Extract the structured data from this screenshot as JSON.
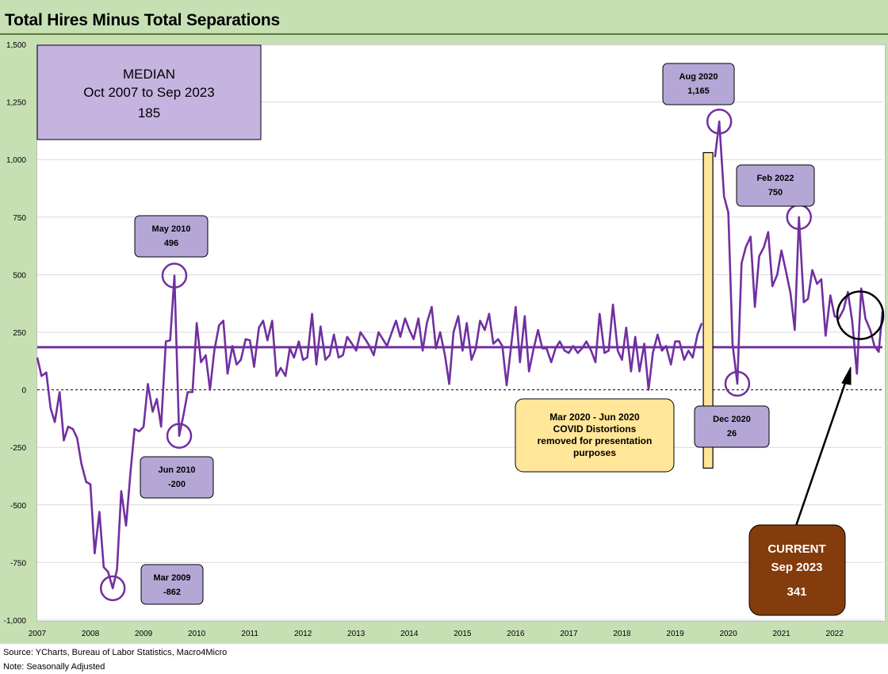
{
  "chart_data": {
    "type": "line",
    "title": "Total Hires Minus Total Separations",
    "ylim": [
      -1000,
      1500
    ],
    "yticks": [
      -1000,
      -750,
      -500,
      -250,
      0,
      250,
      500,
      750,
      1000,
      1250,
      1500
    ],
    "ytick_labels": [
      "-1,000",
      "-750",
      "-500",
      "-250",
      "0",
      "250",
      "500",
      "750",
      "1,000",
      "1,250",
      "1,500"
    ],
    "xlim": [
      2007.0,
      2022.9
    ],
    "xtick_labels": [
      "2007",
      "2008",
      "2009",
      "2010",
      "2011",
      "2012",
      "2013",
      "2014",
      "2015",
      "2016",
      "2017",
      "2018",
      "2019",
      "2020",
      "2021",
      "2022"
    ],
    "median": 185,
    "series": [
      {
        "name": "Total Hires Minus Total Separations",
        "color": "#7030a0",
        "segments": [
          [
            [
              2007.0,
              140
            ],
            [
              2007.08,
              60
            ],
            [
              2007.17,
              75
            ],
            [
              2007.25,
              -80
            ],
            [
              2007.33,
              -140
            ],
            [
              2007.42,
              -10
            ],
            [
              2007.5,
              -220
            ],
            [
              2007.58,
              -160
            ],
            [
              2007.67,
              -170
            ],
            [
              2007.75,
              -210
            ],
            [
              2007.83,
              -320
            ],
            [
              2007.92,
              -400
            ],
            [
              2008.0,
              -410
            ],
            [
              2008.08,
              -710
            ],
            [
              2008.17,
              -530
            ],
            [
              2008.25,
              -770
            ],
            [
              2008.33,
              -790
            ],
            [
              2008.42,
              -862
            ],
            [
              2008.5,
              -780
            ],
            [
              2008.58,
              -440
            ],
            [
              2008.67,
              -590
            ],
            [
              2008.75,
              -370
            ],
            [
              2008.83,
              -170
            ],
            [
              2008.92,
              -180
            ],
            [
              2009.0,
              -160
            ],
            [
              2009.08,
              25
            ],
            [
              2009.17,
              -95
            ],
            [
              2009.25,
              -40
            ],
            [
              2009.33,
              -160
            ],
            [
              2009.42,
              210
            ],
            [
              2009.5,
              215
            ],
            [
              2009.58,
              496
            ],
            [
              2009.67,
              -200
            ],
            [
              2009.75,
              -110
            ],
            [
              2009.83,
              -10
            ],
            [
              2009.92,
              -10
            ],
            [
              2010.0,
              290
            ],
            [
              2010.08,
              120
            ],
            [
              2010.17,
              150
            ],
            [
              2010.25,
              0
            ],
            [
              2010.33,
              170
            ],
            [
              2010.42,
              280
            ],
            [
              2010.5,
              300
            ],
            [
              2010.58,
              70
            ],
            [
              2010.67,
              190
            ],
            [
              2010.75,
              110
            ],
            [
              2010.83,
              130
            ],
            [
              2010.92,
              220
            ],
            [
              2011.0,
              215
            ],
            [
              2011.08,
              100
            ],
            [
              2011.17,
              270
            ],
            [
              2011.25,
              300
            ],
            [
              2011.33,
              215
            ],
            [
              2011.42,
              300
            ],
            [
              2011.5,
              60
            ],
            [
              2011.58,
              95
            ],
            [
              2011.67,
              60
            ],
            [
              2011.75,
              180
            ],
            [
              2011.83,
              140
            ],
            [
              2011.92,
              210
            ],
            [
              2012.0,
              130
            ],
            [
              2012.08,
              140
            ],
            [
              2012.17,
              330
            ],
            [
              2012.25,
              110
            ],
            [
              2012.33,
              275
            ],
            [
              2012.42,
              130
            ],
            [
              2012.5,
              150
            ],
            [
              2012.58,
              240
            ],
            [
              2012.67,
              140
            ],
            [
              2012.75,
              150
            ],
            [
              2012.83,
              230
            ],
            [
              2012.92,
              200
            ],
            [
              2013.0,
              170
            ],
            [
              2013.08,
              250
            ],
            [
              2013.17,
              220
            ],
            [
              2013.25,
              190
            ],
            [
              2013.33,
              150
            ],
            [
              2013.42,
              250
            ],
            [
              2013.5,
              220
            ],
            [
              2013.58,
              190
            ],
            [
              2013.67,
              250
            ],
            [
              2013.75,
              300
            ],
            [
              2013.83,
              230
            ],
            [
              2013.92,
              310
            ],
            [
              2014.0,
              260
            ],
            [
              2014.08,
              220
            ],
            [
              2014.17,
              310
            ],
            [
              2014.25,
              170
            ],
            [
              2014.33,
              290
            ],
            [
              2014.42,
              360
            ],
            [
              2014.5,
              180
            ],
            [
              2014.58,
              250
            ],
            [
              2014.67,
              150
            ],
            [
              2014.75,
              25
            ],
            [
              2014.83,
              250
            ],
            [
              2014.92,
              320
            ],
            [
              2015.0,
              170
            ],
            [
              2015.08,
              290
            ],
            [
              2015.17,
              130
            ],
            [
              2015.25,
              180
            ],
            [
              2015.33,
              300
            ],
            [
              2015.42,
              260
            ],
            [
              2015.5,
              330
            ],
            [
              2015.58,
              200
            ],
            [
              2015.67,
              220
            ],
            [
              2015.75,
              190
            ],
            [
              2015.83,
              20
            ],
            [
              2015.92,
              200
            ],
            [
              2016.0,
              360
            ],
            [
              2016.08,
              120
            ],
            [
              2016.17,
              320
            ],
            [
              2016.25,
              80
            ],
            [
              2016.33,
              170
            ],
            [
              2016.42,
              260
            ],
            [
              2016.5,
              180
            ],
            [
              2016.58,
              180
            ],
            [
              2016.67,
              120
            ],
            [
              2016.75,
              180
            ],
            [
              2016.83,
              210
            ],
            [
              2016.92,
              170
            ],
            [
              2017.0,
              160
            ],
            [
              2017.08,
              190
            ],
            [
              2017.17,
              160
            ],
            [
              2017.25,
              180
            ],
            [
              2017.33,
              210
            ],
            [
              2017.42,
              170
            ],
            [
              2017.5,
              120
            ],
            [
              2017.58,
              330
            ],
            [
              2017.67,
              160
            ],
            [
              2017.75,
              170
            ],
            [
              2017.83,
              370
            ],
            [
              2017.92,
              170
            ],
            [
              2018.0,
              130
            ],
            [
              2018.08,
              270
            ],
            [
              2018.17,
              80
            ],
            [
              2018.25,
              230
            ],
            [
              2018.33,
              80
            ],
            [
              2018.42,
              200
            ],
            [
              2018.5,
              0
            ],
            [
              2018.58,
              160
            ],
            [
              2018.67,
              240
            ],
            [
              2018.75,
              170
            ],
            [
              2018.83,
              190
            ],
            [
              2018.92,
              110
            ],
            [
              2019.0,
              210
            ],
            [
              2019.08,
              210
            ],
            [
              2019.17,
              130
            ],
            [
              2019.25,
              170
            ],
            [
              2019.33,
              140
            ],
            [
              2019.42,
              240
            ],
            [
              2019.5,
              290
            ]
          ],
          [
            [
              2019.75,
              1010
            ],
            [
              2019.83,
              1165
            ],
            [
              2019.92,
              840
            ],
            [
              2020.0,
              770
            ],
            [
              2020.08,
              200
            ],
            [
              2020.17,
              26
            ],
            [
              2020.25,
              550
            ],
            [
              2020.33,
              620
            ],
            [
              2020.42,
              665
            ],
            [
              2020.5,
              360
            ],
            [
              2020.58,
              580
            ],
            [
              2020.67,
              620
            ],
            [
              2020.75,
              685
            ],
            [
              2020.83,
              450
            ],
            [
              2020.92,
              500
            ],
            [
              2021.0,
              605
            ],
            [
              2021.08,
              520
            ],
            [
              2021.17,
              420
            ],
            [
              2021.25,
              260
            ],
            [
              2021.33,
              750
            ],
            [
              2021.42,
              380
            ],
            [
              2021.5,
              395
            ],
            [
              2021.58,
              520
            ],
            [
              2021.67,
              460
            ],
            [
              2021.75,
              480
            ],
            [
              2021.83,
              235
            ],
            [
              2021.92,
              410
            ],
            [
              2022.0,
              320
            ],
            [
              2022.08,
              310
            ],
            [
              2022.17,
              350
            ],
            [
              2022.25,
              425
            ],
            [
              2022.33,
              300
            ],
            [
              2022.42,
              70
            ],
            [
              2022.5,
              440
            ],
            [
              2022.58,
              310
            ],
            [
              2022.67,
              260
            ],
            [
              2022.75,
              190
            ],
            [
              2022.83,
              165
            ],
            [
              2022.9,
              341
            ]
          ]
        ]
      }
    ],
    "annotations": [
      {
        "id": "mar2009",
        "label": "Mar 2009",
        "value": "-862",
        "x": 2008.42,
        "y": -862
      },
      {
        "id": "may2010",
        "label": "May 2010",
        "value": "496",
        "x": 2009.58,
        "y": 496
      },
      {
        "id": "jun2010",
        "label": "Jun 2010",
        "value": "-200",
        "x": 2009.67,
        "y": -200
      },
      {
        "id": "aug2020",
        "label": "Aug 2020",
        "value": "1,165",
        "x": 2019.83,
        "y": 1165
      },
      {
        "id": "dec2020",
        "label": "Dec 2020",
        "value": "26",
        "x": 2020.17,
        "y": 26
      },
      {
        "id": "feb2022",
        "label": "Feb 2022",
        "value": "750",
        "x": 2021.33,
        "y": 750
      }
    ],
    "median_box": {
      "line1": "MEDIAN",
      "line2": "Oct 2007 to Sep 2023",
      "line3": "185"
    },
    "covid_box": {
      "lines": [
        "Mar 2020 - Jun 2020",
        "COVID Distortions",
        "removed for presentation",
        "purposes"
      ]
    },
    "current_box": {
      "line1": "CURRENT",
      "line2": "Sep 2023",
      "line3": "341",
      "x": 2022.9,
      "y": 341
    }
  },
  "colors": {
    "frame": "#c6e0b4",
    "line": "#7030a0",
    "label_fill": "#b4a7d6",
    "median_fill": "#c5b3e0",
    "covid_fill": "#ffe699",
    "covid_bar": "#ffe699",
    "current_fill": "#843c0c",
    "grid": "#d9d9d9"
  },
  "footer": {
    "source": "Source: YCharts, Bureau of Labor Statistics, Macro4Micro",
    "note": "Note: Seasonally Adjusted"
  }
}
